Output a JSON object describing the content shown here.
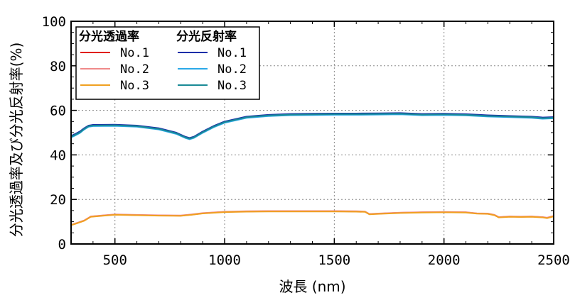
{
  "chart_data": {
    "type": "line",
    "xlabel": "波長 (nm)",
    "ylabel": "分光透過率及び分光反射率(%)",
    "xlim": [
      300,
      2500
    ],
    "ylim": [
      0,
      100
    ],
    "x_ticks": [
      500,
      1000,
      1500,
      2000,
      2500
    ],
    "y_ticks": [
      0,
      20,
      40,
      60,
      80,
      100
    ],
    "grid": true,
    "legend_placement": "top-left",
    "legend_groups": [
      {
        "title": "分光透過率",
        "entries": [
          "No.1",
          "No.2",
          "No.3"
        ]
      },
      {
        "title": "分光反射率",
        "entries": [
          "No.1",
          "No.2",
          "No.3"
        ]
      }
    ],
    "series": [
      {
        "name": "分光透過率 No.1",
        "color": "#e0201c",
        "x": [
          300,
          330,
          360,
          390,
          450,
          500,
          600,
          700,
          800,
          850,
          900,
          1000,
          1100,
          1200,
          1300,
          1400,
          1500,
          1600,
          1640,
          1660,
          1700,
          1800,
          1900,
          2000,
          2100,
          2150,
          2200,
          2230,
          2250,
          2300,
          2350,
          2400,
          2450,
          2470,
          2500
        ],
        "y": [
          8.5,
          9.5,
          10.5,
          12.3,
          12.8,
          13.2,
          13.0,
          12.8,
          12.7,
          13.2,
          13.8,
          14.4,
          14.6,
          14.7,
          14.7,
          14.7,
          14.7,
          14.6,
          14.5,
          13.4,
          13.6,
          14.0,
          14.2,
          14.3,
          14.2,
          13.7,
          13.6,
          13.0,
          12.0,
          12.3,
          12.2,
          12.3,
          12.0,
          11.7,
          12.5
        ]
      },
      {
        "name": "分光透過率 No.2",
        "color": "#f08a8a",
        "x": [
          300,
          330,
          360,
          390,
          450,
          500,
          600,
          700,
          800,
          850,
          900,
          1000,
          1100,
          1200,
          1300,
          1400,
          1500,
          1600,
          1640,
          1660,
          1700,
          1800,
          1900,
          2000,
          2100,
          2150,
          2200,
          2230,
          2250,
          2300,
          2350,
          2400,
          2450,
          2470,
          2500
        ],
        "y": [
          8.6,
          9.6,
          10.6,
          12.4,
          12.9,
          13.3,
          13.1,
          12.9,
          12.8,
          13.3,
          13.9,
          14.5,
          14.7,
          14.8,
          14.8,
          14.8,
          14.8,
          14.7,
          14.6,
          13.5,
          13.7,
          14.1,
          14.3,
          14.4,
          14.3,
          13.8,
          13.7,
          13.1,
          12.1,
          12.4,
          12.3,
          12.4,
          12.1,
          11.8,
          12.6
        ]
      },
      {
        "name": "分光透過率 No.3",
        "color": "#f0a020",
        "x": [
          300,
          330,
          360,
          390,
          450,
          500,
          600,
          700,
          800,
          850,
          900,
          1000,
          1100,
          1200,
          1300,
          1400,
          1500,
          1600,
          1640,
          1660,
          1700,
          1800,
          1900,
          2000,
          2100,
          2150,
          2200,
          2230,
          2250,
          2300,
          2350,
          2400,
          2450,
          2470,
          2500
        ],
        "y": [
          8.4,
          9.4,
          10.4,
          12.2,
          12.7,
          13.1,
          12.9,
          12.7,
          12.6,
          13.1,
          13.7,
          14.3,
          14.5,
          14.6,
          14.6,
          14.6,
          14.6,
          14.5,
          14.4,
          13.3,
          13.5,
          13.9,
          14.1,
          14.2,
          14.1,
          13.6,
          13.5,
          12.9,
          11.9,
          12.2,
          12.1,
          12.2,
          11.9,
          11.6,
          12.4
        ]
      },
      {
        "name": "分光反射率 No.1",
        "color": "#1a2ea8",
        "x": [
          300,
          320,
          340,
          360,
          380,
          400,
          500,
          600,
          700,
          780,
          820,
          840,
          860,
          900,
          950,
          1000,
          1100,
          1200,
          1300,
          1400,
          1500,
          1600,
          1700,
          1800,
          1900,
          2000,
          2100,
          2200,
          2300,
          2400,
          2450,
          2500
        ],
        "y": [
          48.5,
          49.5,
          50.5,
          52.0,
          53.2,
          53.5,
          53.6,
          53.2,
          52.0,
          50.0,
          48.2,
          47.6,
          48.2,
          50.5,
          53.0,
          55.0,
          57.2,
          58.0,
          58.4,
          58.5,
          58.6,
          58.6,
          58.7,
          58.8,
          58.4,
          58.5,
          58.3,
          57.8,
          57.5,
          57.2,
          56.8,
          57.0
        ]
      },
      {
        "name": "分光反射率 No.2",
        "color": "#2aa8e8",
        "x": [
          300,
          320,
          340,
          360,
          380,
          400,
          500,
          600,
          700,
          780,
          820,
          840,
          860,
          900,
          950,
          1000,
          1100,
          1200,
          1300,
          1400,
          1500,
          1600,
          1700,
          1800,
          1900,
          2000,
          2100,
          2200,
          2300,
          2400,
          2450,
          2500
        ],
        "y": [
          47.8,
          48.8,
          49.8,
          51.4,
          52.6,
          52.9,
          53.0,
          52.6,
          51.4,
          49.4,
          47.6,
          47.0,
          47.6,
          49.9,
          52.4,
          54.4,
          56.6,
          57.4,
          57.8,
          57.9,
          58.0,
          58.0,
          58.1,
          58.2,
          57.8,
          57.9,
          57.7,
          57.2,
          56.9,
          56.6,
          56.2,
          56.4
        ]
      },
      {
        "name": "分光反射率 No.3",
        "color": "#1a8a96",
        "x": [
          300,
          320,
          340,
          360,
          380,
          400,
          500,
          600,
          700,
          780,
          820,
          840,
          860,
          900,
          950,
          1000,
          1100,
          1200,
          1300,
          1400,
          1500,
          1600,
          1700,
          1800,
          1900,
          2000,
          2100,
          2200,
          2300,
          2400,
          2450,
          2500
        ],
        "y": [
          48.1,
          49.1,
          50.1,
          51.7,
          52.9,
          53.2,
          53.3,
          52.9,
          51.7,
          49.7,
          47.9,
          47.3,
          47.9,
          50.2,
          52.7,
          54.7,
          56.9,
          57.7,
          58.1,
          58.2,
          58.3,
          58.3,
          58.4,
          58.5,
          58.1,
          58.2,
          58.0,
          57.5,
          57.2,
          56.9,
          56.5,
          56.7
        ]
      }
    ]
  }
}
